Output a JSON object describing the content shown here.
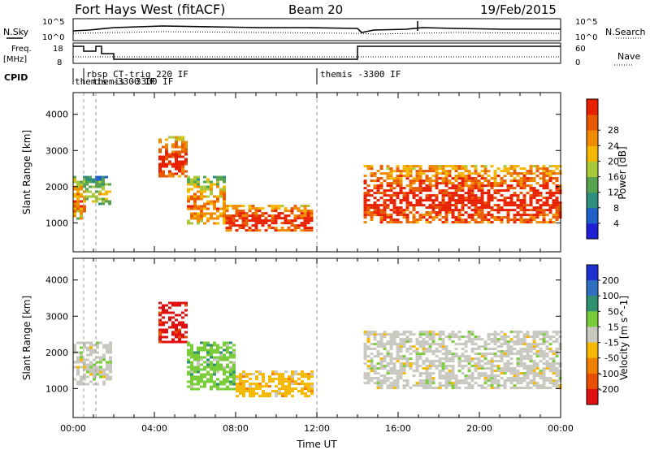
{
  "header": {
    "station": "Fort Hays West (fitACF)",
    "beam": "Beam 20",
    "date": "19/Feb/2015"
  },
  "summary": {
    "nsky_label": "N.Sky",
    "nsearch_label": "N.Search",
    "freq_label": "Freq.",
    "freq_unit": "[MHz]",
    "nave_label": "Nave",
    "cpid_label": "CPID",
    "nsky_ticks": [
      "10^5",
      "10^0"
    ],
    "nsearch_ticks": [
      "10^5",
      "10^0"
    ],
    "freq_ticks": [
      "18",
      "8"
    ],
    "nave_ticks": [
      "60",
      "0"
    ],
    "cpid_programs": [
      "rbsp CT-trig 220 IF",
      "themis -3300 IF",
      "themis -3300 IF",
      "themis -3300 IF"
    ]
  },
  "chart_data": [
    {
      "type": "heatmap",
      "name": "power",
      "ylabel": "Slant Range [km]",
      "xlabel": "",
      "y_ticks": [
        "1000",
        "2000",
        "3000",
        "4000"
      ],
      "ylim_km": [
        200,
        4600
      ],
      "xlim_hours": [
        0,
        24
      ],
      "colorbar": {
        "label": "Power [dB]",
        "ticks": [
          "4",
          "8",
          "12",
          "16",
          "20",
          "24",
          "28"
        ],
        "colors": [
          "#1f1fd8",
          "#1f5fc8",
          "#2f8f7f",
          "#57a34f",
          "#a9c83a",
          "#f5b800",
          "#f08a00",
          "#e85a00",
          "#e82000"
        ]
      },
      "echo_regions": [
        {
          "t0": 0.0,
          "t1": 0.6,
          "r0": 1100,
          "r1": 2300,
          "level": "mid"
        },
        {
          "t0": 0.6,
          "t1": 1.8,
          "r0": 1500,
          "r1": 2300,
          "level": "low"
        },
        {
          "t0": 4.2,
          "t1": 5.6,
          "r0": 2300,
          "r1": 3400,
          "level": "high"
        },
        {
          "t0": 5.6,
          "t1": 7.5,
          "r0": 1000,
          "r1": 2300,
          "level": "mid"
        },
        {
          "t0": 7.5,
          "t1": 11.8,
          "r0": 800,
          "r1": 1500,
          "level": "high"
        },
        {
          "t0": 14.3,
          "t1": 24.0,
          "r0": 1000,
          "r1": 2600,
          "level": "high"
        }
      ]
    },
    {
      "type": "heatmap",
      "name": "velocity",
      "ylabel": "Slant Range [km]",
      "xlabel": "Time UT",
      "x_ticks": [
        "00:00",
        "04:00",
        "08:00",
        "12:00",
        "16:00",
        "20:00",
        "00:00"
      ],
      "y_ticks": [
        "1000",
        "2000",
        "3000",
        "4000"
      ],
      "ylim_km": [
        200,
        4600
      ],
      "xlim_hours": [
        0,
        24
      ],
      "colorbar": {
        "label": "Velocity [m s^-1]",
        "ticks": [
          "200",
          "100",
          "50",
          "15",
          "-15",
          "-50",
          "-100",
          "-200"
        ],
        "colors": [
          "#1f2fd0",
          "#2f6fc0",
          "#2f8f6f",
          "#7acc3a",
          "#c8c8c0",
          "#f5b800",
          "#f08000",
          "#e85000",
          "#e01010"
        ]
      },
      "echo_regions": [
        {
          "t0": 0.0,
          "t1": 1.8,
          "r0": 1100,
          "r1": 2300,
          "level": "gray"
        },
        {
          "t0": 4.2,
          "t1": 5.6,
          "r0": 2300,
          "r1": 3400,
          "level": "red"
        },
        {
          "t0": 5.6,
          "t1": 8.0,
          "r0": 1000,
          "r1": 2300,
          "level": "green"
        },
        {
          "t0": 8.0,
          "t1": 11.8,
          "r0": 800,
          "r1": 1500,
          "level": "orange"
        },
        {
          "t0": 14.3,
          "t1": 24.0,
          "r0": 1000,
          "r1": 2600,
          "level": "gray"
        }
      ]
    }
  ]
}
